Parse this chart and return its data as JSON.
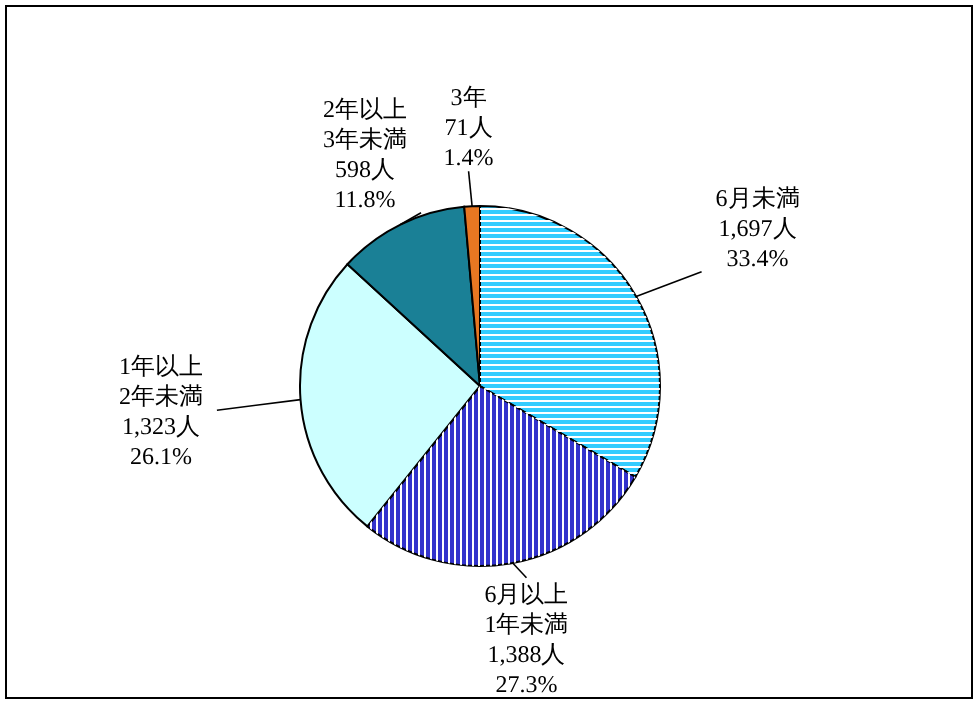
{
  "chart_data": {
    "type": "pie",
    "categories": [
      "6月未満",
      "6月以上\n1年未満",
      "1年以上\n2年未満",
      "2年以上\n3年未満",
      "3年"
    ],
    "values": [
      1697,
      1388,
      1323,
      598,
      71
    ],
    "value_labels": [
      "1,697人\n33.4%",
      "1,388人\n27.3%",
      "1,323人\n26.1%",
      "598人\n11.8%",
      "71人\n1.4%"
    ],
    "colors": [
      "#33ccff",
      "#3333cc",
      "#ccffff",
      "#1a8096",
      "#e87722"
    ],
    "legend": false
  }
}
